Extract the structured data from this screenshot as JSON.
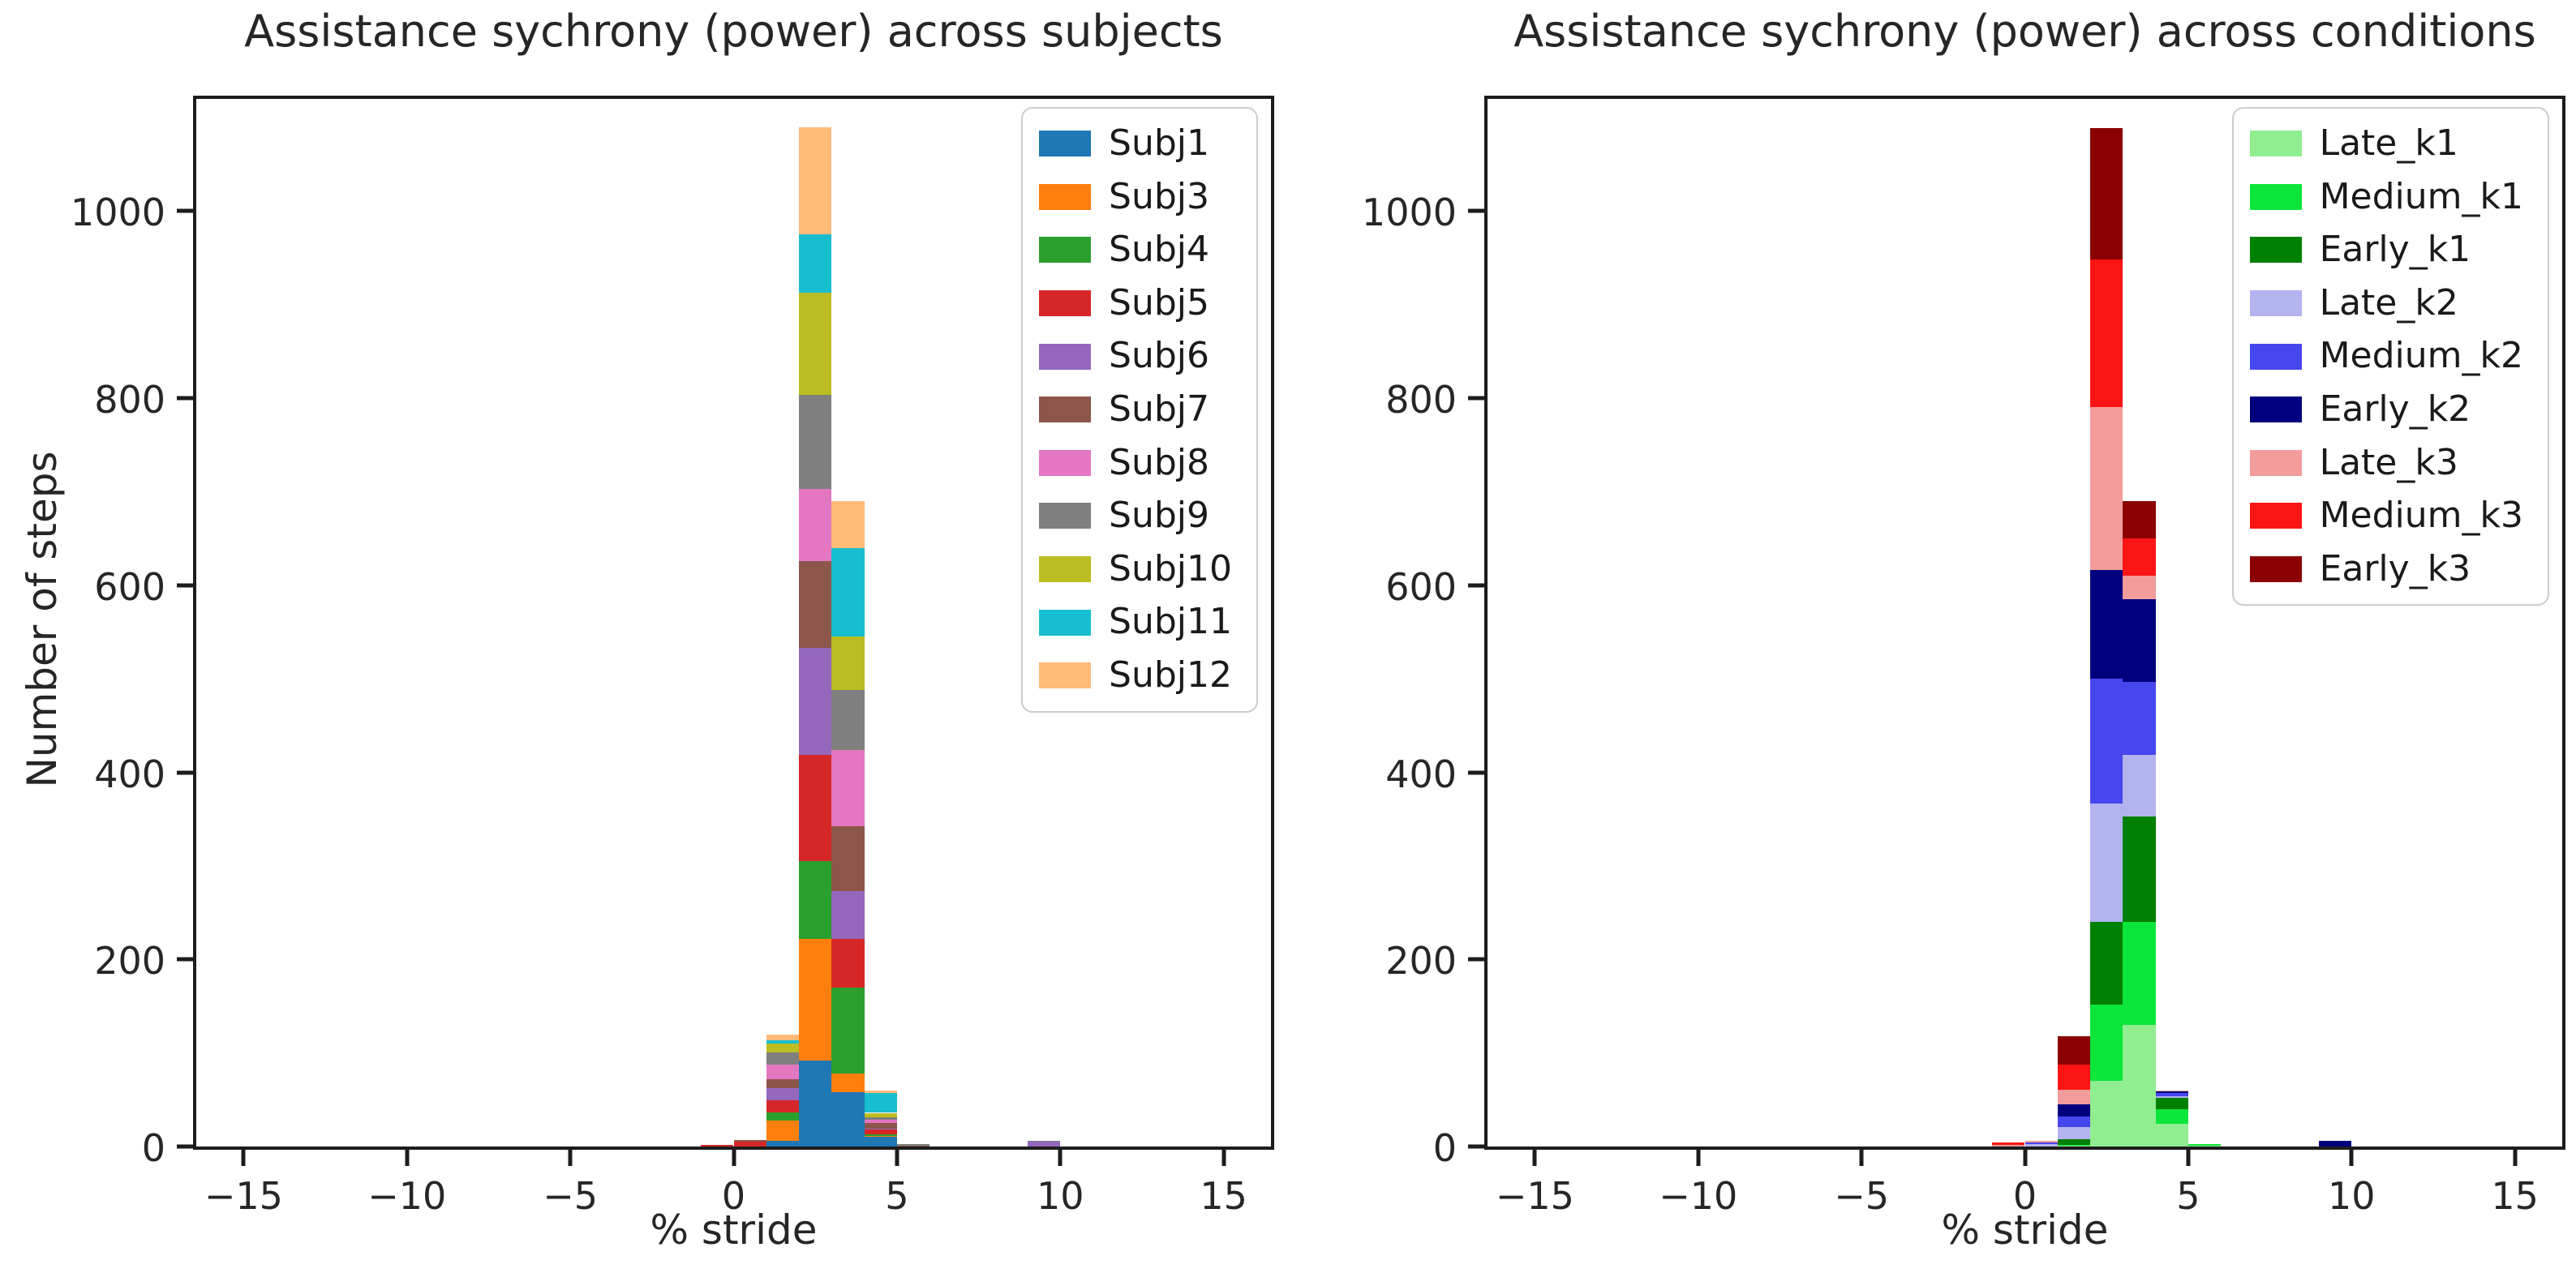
{
  "figure": {
    "background": "#ffffff"
  },
  "chart_data": [
    {
      "type": "bar",
      "kind": "stacked-histogram",
      "title": "Assistance sychrony (power) across subjects",
      "xlabel": "% stride",
      "ylabel": "Number of steps",
      "xlim": [
        -16.45,
        16.45
      ],
      "ylim": [
        0,
        1120
      ],
      "xticks": [
        -15,
        -10,
        -5,
        0,
        5,
        10,
        15
      ],
      "yticks": [
        0,
        200,
        400,
        600,
        800,
        1000
      ],
      "grid": false,
      "legend_position": "upper right",
      "bins": [
        {
          "x0": -1,
          "x1": 0
        },
        {
          "x0": 0,
          "x1": 1
        },
        {
          "x0": 1,
          "x1": 2
        },
        {
          "x0": 2,
          "x1": 3
        },
        {
          "x0": 3,
          "x1": 4
        },
        {
          "x0": 4,
          "x1": 5
        },
        {
          "x0": 5,
          "x1": 6
        },
        {
          "x0": 9,
          "x1": 10
        }
      ],
      "series": [
        {
          "name": "Subj1",
          "color": "#1f77b4",
          "values": [
            0,
            0,
            6,
            92,
            58,
            10,
            0,
            0
          ]
        },
        {
          "name": "Subj3",
          "color": "#ff7f0e",
          "values": [
            0,
            0,
            22,
            130,
            20,
            1,
            0,
            0
          ]
        },
        {
          "name": "Subj4",
          "color": "#2ca02c",
          "values": [
            0,
            0,
            8,
            83,
            92,
            2,
            0,
            0
          ]
        },
        {
          "name": "Subj5",
          "color": "#d62728",
          "values": [
            2,
            5,
            13,
            114,
            52,
            5,
            0,
            0
          ]
        },
        {
          "name": "Subj6",
          "color": "#9467bd",
          "values": [
            0,
            0,
            13,
            114,
            51,
            1,
            0,
            5
          ]
        },
        {
          "name": "Subj7",
          "color": "#8c564b",
          "values": [
            0,
            2,
            10,
            93,
            69,
            6,
            1,
            0
          ]
        },
        {
          "name": "Subj8",
          "color": "#e377c2",
          "values": [
            0,
            0,
            16,
            77,
            82,
            4,
            0,
            0
          ]
        },
        {
          "name": "Subj9",
          "color": "#7f7f7f",
          "values": [
            0,
            0,
            13,
            101,
            64,
            2,
            2,
            1
          ]
        },
        {
          "name": "Subj10",
          "color": "#bcbd22",
          "values": [
            0,
            0,
            9,
            109,
            57,
            5,
            0,
            0
          ]
        },
        {
          "name": "Subj11",
          "color": "#17becf",
          "values": [
            0,
            0,
            4,
            62,
            95,
            21,
            0,
            0
          ]
        },
        {
          "name": "Subj12",
          "color": "#ffbb78",
          "values": [
            0,
            0,
            6,
            115,
            50,
            3,
            0,
            0
          ]
        }
      ]
    },
    {
      "type": "bar",
      "kind": "stacked-histogram",
      "title": "Assistance sychrony (power) across conditions",
      "xlabel": "% stride",
      "ylabel": "",
      "xlim": [
        -16.45,
        16.45
      ],
      "ylim": [
        0,
        1120
      ],
      "xticks": [
        -15,
        -10,
        -5,
        0,
        5,
        10,
        15
      ],
      "yticks": [
        0,
        200,
        400,
        600,
        800,
        1000
      ],
      "grid": false,
      "legend_position": "upper right",
      "bins": [
        {
          "x0": -1,
          "x1": 0
        },
        {
          "x0": 0,
          "x1": 1
        },
        {
          "x0": 1,
          "x1": 2
        },
        {
          "x0": 2,
          "x1": 3
        },
        {
          "x0": 3,
          "x1": 4
        },
        {
          "x0": 4,
          "x1": 5
        },
        {
          "x0": 5,
          "x1": 6
        },
        {
          "x0": 9,
          "x1": 10
        }
      ],
      "series": [
        {
          "name": "Late_k1",
          "color": "#90ee90",
          "values": [
            0,
            0,
            1,
            70,
            130,
            24,
            1,
            0
          ]
        },
        {
          "name": "Medium_k1",
          "color": "#0ce53a",
          "values": [
            0,
            0,
            1,
            82,
            110,
            16,
            2,
            0
          ]
        },
        {
          "name": "Early_k1",
          "color": "#008000",
          "values": [
            0,
            0,
            6,
            88,
            113,
            12,
            0,
            0
          ]
        },
        {
          "name": "Late_k2",
          "color": "#b3b3f0",
          "values": [
            0,
            3,
            13,
            127,
            66,
            2,
            0,
            0
          ]
        },
        {
          "name": "Medium_k2",
          "color": "#4646ee",
          "values": [
            0,
            1,
            11,
            133,
            78,
            3,
            0,
            0
          ]
        },
        {
          "name": "Early_k2",
          "color": "#00007f",
          "values": [
            0,
            0,
            13,
            116,
            88,
            2,
            0,
            6
          ]
        },
        {
          "name": "Late_k3",
          "color": "#f29c9c",
          "values": [
            2,
            2,
            16,
            175,
            25,
            1,
            0,
            0
          ]
        },
        {
          "name": "Medium_k3",
          "color": "#fb1414",
          "values": [
            2,
            0,
            27,
            157,
            40,
            0,
            0,
            0
          ]
        },
        {
          "name": "Early_k3",
          "color": "#8b0000",
          "values": [
            0,
            0,
            30,
            141,
            40,
            0,
            0,
            0
          ]
        }
      ]
    }
  ]
}
